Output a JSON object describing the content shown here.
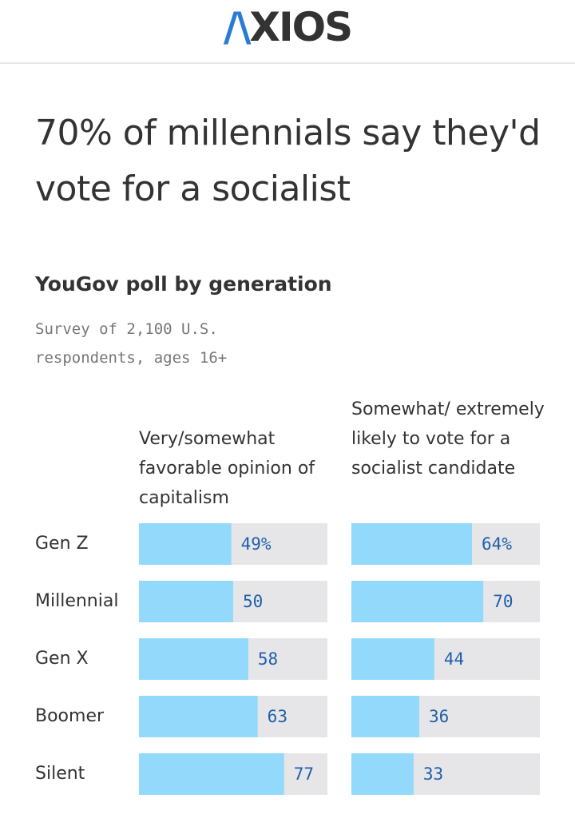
{
  "header": {
    "logo_text": "AXIOS"
  },
  "title": "70% of millennials say they'd vote for a socialist",
  "subtitle": "YouGov poll by generation",
  "note": "Survey of 2,100 U.S. respondents, ages 16+",
  "colors": {
    "bar": "#93d9fb",
    "track": "#e6e6e9",
    "value_text": "#1f5fa8"
  },
  "chart_data": {
    "type": "bar",
    "categories": [
      "Gen Z",
      "Millennial",
      "Gen X",
      "Boomer",
      "Silent"
    ],
    "xlim": [
      0,
      100
    ],
    "series": [
      {
        "name": "Very/somewhat favorable opinion of capitalism",
        "values": [
          49,
          50,
          58,
          63,
          77
        ],
        "labels": [
          "49%",
          "50",
          "58",
          "63",
          "77"
        ]
      },
      {
        "name": "Somewhat/ extremely likely to vote for a socialist candidate",
        "values": [
          64,
          70,
          44,
          36,
          33
        ],
        "labels": [
          "64%",
          "70",
          "44",
          "36",
          "33"
        ]
      }
    ]
  }
}
